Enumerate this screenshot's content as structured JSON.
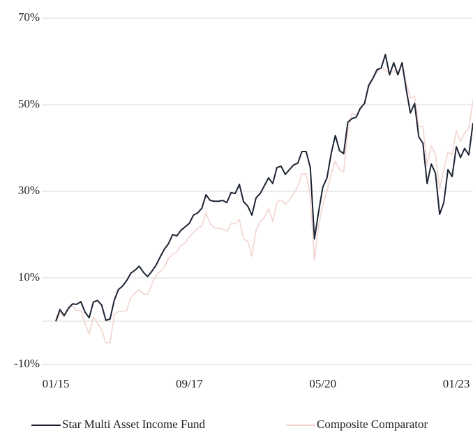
{
  "chart_data": {
    "type": "line",
    "categories": [
      "01/15",
      null,
      null,
      null,
      null,
      null,
      null,
      null,
      null,
      null,
      null,
      null,
      null,
      null,
      null,
      null,
      null,
      null,
      null,
      null,
      null,
      null,
      null,
      null,
      null,
      null,
      null,
      null,
      null,
      null,
      null,
      null,
      "09/17",
      null,
      null,
      null,
      null,
      null,
      null,
      null,
      null,
      null,
      null,
      null,
      null,
      null,
      null,
      null,
      null,
      null,
      null,
      null,
      null,
      null,
      null,
      null,
      null,
      null,
      null,
      null,
      null,
      null,
      null,
      null,
      "05/20",
      null,
      null,
      null,
      null,
      null,
      null,
      null,
      null,
      null,
      null,
      null,
      null,
      null,
      null,
      null,
      null,
      null,
      null,
      null,
      null,
      null,
      null,
      null,
      null,
      null,
      null,
      null,
      null,
      null,
      null,
      null,
      "01/23",
      null,
      null,
      null,
      null
    ],
    "series": [
      {
        "name": "Star Multi Asset Income Fund",
        "color": "#1c2333",
        "values": [
          0,
          2.7,
          1.3,
          2.9,
          4.0,
          3.9,
          4.5,
          2.1,
          0.8,
          4.4,
          4.8,
          3.7,
          0.2,
          0.5,
          4.8,
          7.3,
          8.1,
          9.4,
          11.1,
          11.8,
          12.7,
          11.3,
          10.3,
          11.5,
          12.9,
          14.8,
          16.6,
          17.9,
          20.0,
          19.7,
          21.0,
          21.8,
          22.6,
          24.5,
          25.0,
          26.1,
          29.2,
          27.9,
          27.7,
          27.7,
          27.9,
          27.4,
          29.7,
          29.5,
          31.6,
          27.6,
          26.6,
          24.5,
          28.5,
          29.5,
          31.3,
          33.1,
          31.8,
          35.5,
          35.8,
          33.9,
          35.0,
          36.1,
          36.5,
          39.2,
          39.2,
          35.5,
          19.0,
          25.3,
          31.0,
          33.1,
          38.7,
          42.9,
          39.4,
          38.7,
          46.0,
          46.8,
          47.1,
          49.2,
          50.3,
          54.5,
          56.1,
          58.1,
          58.5,
          61.6,
          56.9,
          59.7,
          56.9,
          59.7,
          53.5,
          48.1,
          50.3,
          42.6,
          41.1,
          31.8,
          36.3,
          34.2,
          24.7,
          27.4,
          35.0,
          33.4,
          40.3,
          37.8,
          39.9,
          38.4,
          45.8
        ]
      },
      {
        "name": "Composite Comparator",
        "color": "#f2d4cf",
        "values": [
          -0.5,
          2.0,
          1.0,
          3.5,
          3.5,
          2.5,
          2.5,
          -0.5,
          -3,
          1.0,
          -0.5,
          -2,
          -5,
          -5,
          1.5,
          2.2,
          2.3,
          2.5,
          5.5,
          6.5,
          7.3,
          6.3,
          6.2,
          8.5,
          10.5,
          11.5,
          12.5,
          14.5,
          15.5,
          16,
          17.5,
          18,
          19.5,
          20.5,
          21.5,
          22,
          25,
          22.5,
          21.5,
          21.5,
          21.2,
          20.8,
          22.5,
          22.5,
          23.5,
          19,
          18.5,
          15,
          21,
          23,
          24,
          26,
          23,
          27.5,
          28,
          27,
          28,
          29.5,
          31,
          34,
          34,
          29,
          14,
          22,
          27,
          30,
          34,
          37,
          35,
          34.5,
          44,
          48,
          47.5,
          49,
          50.5,
          54,
          56,
          57.5,
          58.5,
          58,
          57.5,
          58,
          57,
          59.5,
          55,
          51.5,
          52,
          45,
          45,
          36,
          40.5,
          38.5,
          30.5,
          35,
          39,
          38.5,
          44,
          41.5,
          43.5,
          44.5,
          51
        ]
      }
    ],
    "ylim": [
      -10,
      70
    ],
    "yticks": [
      {
        "value": 70,
        "label": "70%"
      },
      {
        "value": 50,
        "label": "50%"
      },
      {
        "value": 30,
        "label": "30%"
      },
      {
        "value": 10,
        "label": "10%"
      },
      {
        "value": -10,
        "label": "-10%"
      }
    ],
    "ygrid": [
      70,
      50,
      30,
      10,
      0,
      -10
    ],
    "grid": true,
    "legend": "bottom"
  }
}
